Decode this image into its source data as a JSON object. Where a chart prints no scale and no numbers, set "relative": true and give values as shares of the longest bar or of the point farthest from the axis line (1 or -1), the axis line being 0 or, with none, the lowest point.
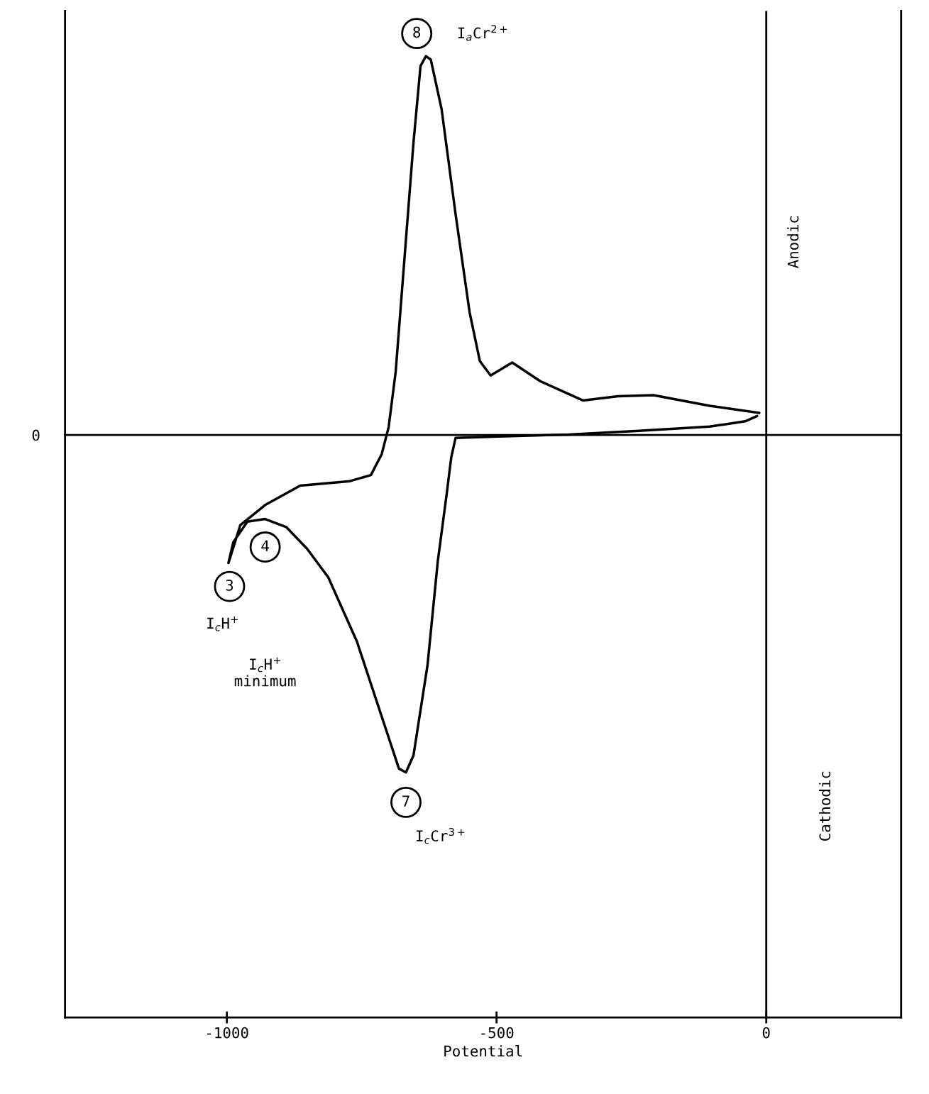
{
  "chart_data": {
    "type": "line",
    "relative": true,
    "xlabel": "Potential",
    "xlim": [
      -1300,
      250
    ],
    "xticks": [
      -1000,
      -500,
      0
    ],
    "series": [
      {
        "color": "#000000",
        "x": [
          -13,
          -105,
          -209,
          -275,
          -340,
          -419,
          -471,
          -511,
          -531,
          -550,
          -576,
          -602,
          -622,
          -631,
          -641,
          -654,
          -674,
          -687,
          -700,
          -713,
          -733,
          -772,
          -864,
          -929,
          -975,
          -997,
          -988,
          -962,
          -929,
          -890,
          -851,
          -812,
          -759,
          -707,
          -681,
          -668,
          -654,
          -628,
          -609,
          -592,
          -584,
          -576,
          -497,
          -366,
          -236,
          -105,
          -39,
          -17
        ],
        "values": [
          0.058,
          0.077,
          0.105,
          0.102,
          0.091,
          0.142,
          0.191,
          0.157,
          0.195,
          0.324,
          0.583,
          0.861,
          0.991,
          1,
          0.974,
          0.772,
          0.406,
          0.167,
          0.021,
          -0.051,
          -0.106,
          -0.122,
          -0.134,
          -0.185,
          -0.238,
          -0.338,
          -0.283,
          -0.229,
          -0.222,
          -0.243,
          -0.301,
          -0.376,
          -0.545,
          -0.769,
          -0.881,
          -0.891,
          -0.846,
          -0.608,
          -0.334,
          -0.151,
          -0.059,
          -0.008,
          -0.004,
          0.001,
          0.011,
          0.022,
          0.036,
          0.05
        ]
      }
    ],
    "ref_lines": [
      {
        "axis": "x",
        "value": 0
      }
    ],
    "annotations": [
      "0",
      "8",
      "I$_{a}$Cr$^{2+}$",
      "3",
      "I$_{c}$H$^{+}$",
      "4",
      "I$_{c}$H$^{+}$\nminimum",
      "7",
      "I$_{c}$Cr$^{3+}$",
      "Anodic",
      "Cathodic"
    ]
  }
}
